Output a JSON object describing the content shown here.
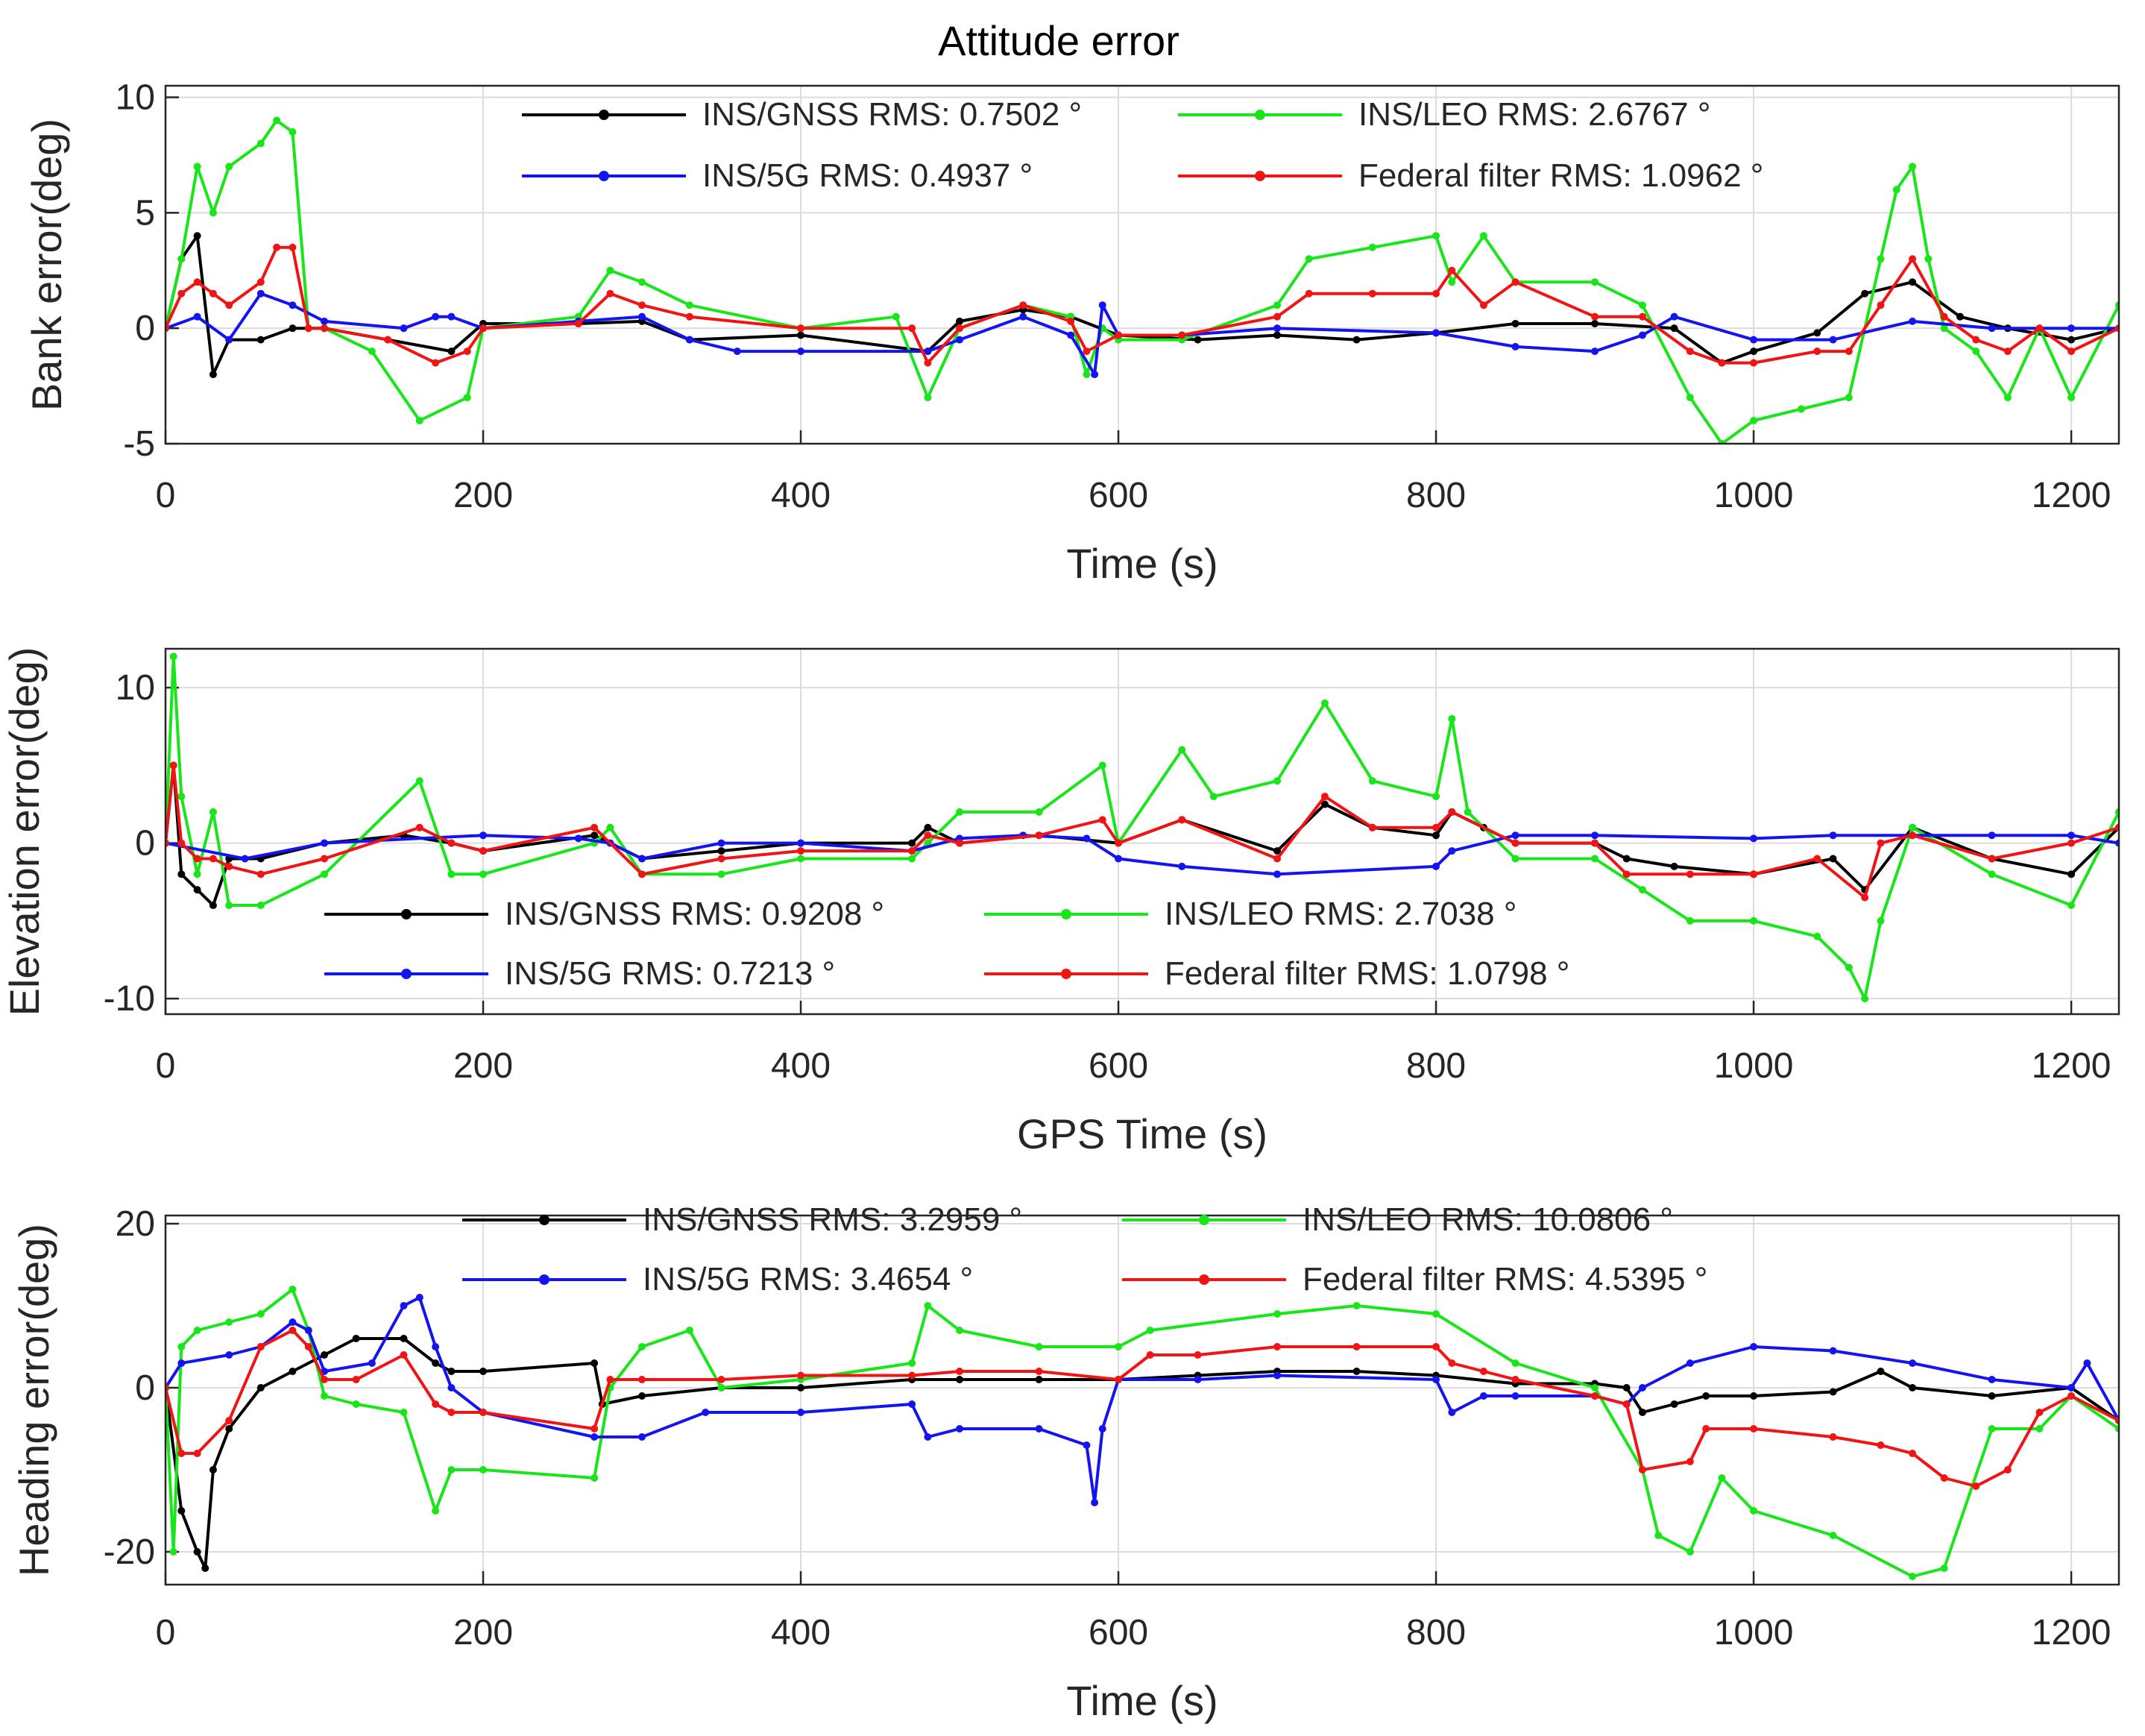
{
  "figure": {
    "title": "Attitude error",
    "colors": {
      "INS/GNSS": "#000000",
      "INS/LEO": "#18e618",
      "INS/5G": "#1414f0",
      "Federal filter": "#f01414"
    }
  },
  "chart_data": [
    {
      "type": "line",
      "title": "Attitude error",
      "xlabel": "Time (s)",
      "ylabel": "Bank error(deg)",
      "xlim": [
        0,
        1230
      ],
      "ylim": [
        -5,
        10.5
      ],
      "xticks": [
        0,
        200,
        400,
        600,
        800,
        1000,
        1200
      ],
      "yticks": [
        -5,
        0,
        5,
        10
      ],
      "legend": [
        "INS/GNSS RMS: 0.7502 °",
        "INS/LEO RMS: 2.6767 °",
        "INS/5G RMS: 0.4937 °",
        "Federal filter RMS: 1.0962 °"
      ],
      "series": [
        {
          "name": "INS/GNSS",
          "color": "#000000",
          "x": [
            0,
            10,
            20,
            30,
            40,
            60,
            80,
            100,
            140,
            180,
            200,
            260,
            300,
            330,
            400,
            480,
            500,
            540,
            570,
            600,
            650,
            700,
            750,
            800,
            850,
            900,
            950,
            980,
            1000,
            1040,
            1070,
            1100,
            1130,
            1160,
            1200,
            1230
          ],
          "y": [
            0,
            3,
            4,
            -2,
            -0.5,
            -0.5,
            0,
            0,
            -0.5,
            -1,
            0.2,
            0.2,
            0.3,
            -0.5,
            -0.3,
            -1,
            0.3,
            0.8,
            0.5,
            -0.3,
            -0.5,
            -0.3,
            -0.5,
            -0.2,
            0.2,
            0.2,
            0,
            -1.5,
            -1,
            -0.2,
            1.5,
            2,
            0.5,
            0,
            -0.5,
            0
          ]
        },
        {
          "name": "INS/LEO",
          "color": "#18e618",
          "x": [
            0,
            10,
            20,
            30,
            40,
            60,
            70,
            80,
            90,
            100,
            130,
            160,
            190,
            200,
            260,
            280,
            300,
            330,
            400,
            460,
            480,
            500,
            540,
            570,
            580,
            590,
            600,
            640,
            700,
            720,
            760,
            800,
            810,
            830,
            850,
            900,
            930,
            960,
            980,
            1000,
            1030,
            1060,
            1080,
            1090,
            1100,
            1110,
            1120,
            1140,
            1160,
            1180,
            1200,
            1230
          ],
          "y": [
            0,
            3,
            7,
            5,
            7,
            8,
            9,
            8.5,
            0,
            0,
            -1,
            -4,
            -3,
            0,
            0.5,
            2.5,
            2,
            1,
            0,
            0.5,
            -3,
            0,
            1,
            0.5,
            -2,
            0,
            -0.5,
            -0.5,
            1,
            3,
            3.5,
            4,
            2,
            4,
            2,
            2,
            1,
            -3,
            -5,
            -4,
            -3.5,
            -3,
            3,
            6,
            7,
            3,
            0,
            -1,
            -3,
            0,
            -3,
            1
          ]
        },
        {
          "name": "INS/5G",
          "color": "#1414f0",
          "x": [
            0,
            20,
            40,
            60,
            80,
            100,
            150,
            170,
            180,
            200,
            260,
            300,
            330,
            360,
            400,
            480,
            500,
            540,
            570,
            585,
            590,
            600,
            640,
            700,
            800,
            850,
            900,
            930,
            950,
            1000,
            1050,
            1100,
            1150,
            1200,
            1230
          ],
          "y": [
            0,
            0.5,
            -0.5,
            1.5,
            1,
            0.3,
            0,
            0.5,
            0.5,
            0,
            0.3,
            0.5,
            -0.5,
            -1,
            -1,
            -1,
            -0.5,
            0.5,
            -0.3,
            -2,
            1,
            -0.3,
            -0.3,
            0,
            -0.2,
            -0.8,
            -1,
            -0.3,
            0.5,
            -0.5,
            -0.5,
            0.3,
            0,
            0,
            0
          ]
        },
        {
          "name": "Federal filter",
          "color": "#f01414",
          "x": [
            0,
            10,
            20,
            30,
            40,
            60,
            70,
            80,
            90,
            100,
            140,
            170,
            190,
            200,
            260,
            280,
            300,
            330,
            400,
            470,
            480,
            500,
            540,
            570,
            580,
            600,
            640,
            700,
            720,
            760,
            800,
            810,
            830,
            850,
            900,
            930,
            960,
            980,
            1000,
            1040,
            1060,
            1080,
            1100,
            1120,
            1140,
            1160,
            1180,
            1200,
            1230
          ],
          "y": [
            0,
            1.5,
            2,
            1.5,
            1,
            2,
            3.5,
            3.5,
            0,
            0,
            -0.5,
            -1.5,
            -1,
            0,
            0.2,
            1.5,
            1,
            0.5,
            0,
            0,
            -1.5,
            0,
            1,
            0.3,
            -1,
            -0.3,
            -0.3,
            0.5,
            1.5,
            1.5,
            1.5,
            2.5,
            1,
            2,
            0.5,
            0.5,
            -1,
            -1.5,
            -1.5,
            -1,
            -1,
            1,
            3,
            0.5,
            -0.5,
            -1,
            0,
            -1,
            0
          ]
        }
      ]
    },
    {
      "type": "line",
      "xlabel": "GPS Time (s)",
      "ylabel": "Elevation error(deg)",
      "xlim": [
        0,
        1230
      ],
      "ylim": [
        -11,
        12.5
      ],
      "xticks": [
        0,
        200,
        400,
        600,
        800,
        1000,
        1200
      ],
      "yticks": [
        -10,
        0,
        10
      ],
      "legend": [
        "INS/GNSS RMS: 0.9208 °",
        "INS/LEO RMS: 2.7038 °",
        "INS/5G RMS: 0.7213 °",
        "Federal filter RMS: 1.0798 °"
      ],
      "series": [
        {
          "name": "INS/GNSS",
          "color": "#000000",
          "x": [
            0,
            5,
            10,
            20,
            30,
            40,
            60,
            100,
            150,
            180,
            200,
            270,
            300,
            350,
            400,
            470,
            480,
            500,
            550,
            600,
            640,
            700,
            730,
            760,
            800,
            810,
            830,
            850,
            900,
            920,
            950,
            1000,
            1050,
            1070,
            1100,
            1150,
            1200,
            1230
          ],
          "y": [
            0,
            5,
            -2,
            -3,
            -4,
            -1,
            -1,
            0,
            0.5,
            0,
            -0.5,
            0.5,
            -1,
            -0.5,
            0,
            0,
            1,
            0,
            0.5,
            0,
            1.5,
            -0.5,
            2.5,
            1,
            0.5,
            2,
            1,
            0,
            0,
            -1,
            -1.5,
            -2,
            -1,
            -3,
            1,
            -1,
            -2,
            1
          ]
        },
        {
          "name": "INS/LEO",
          "color": "#18e618",
          "x": [
            0,
            5,
            10,
            20,
            30,
            40,
            60,
            100,
            160,
            180,
            200,
            270,
            280,
            300,
            350,
            400,
            470,
            480,
            500,
            550,
            590,
            600,
            640,
            660,
            700,
            730,
            760,
            800,
            810,
            820,
            850,
            900,
            930,
            960,
            1000,
            1040,
            1060,
            1070,
            1080,
            1100,
            1150,
            1200,
            1230
          ],
          "y": [
            0,
            12,
            3,
            -2,
            2,
            -4,
            -4,
            -2,
            4,
            -2,
            -2,
            0,
            1,
            -2,
            -2,
            -1,
            -1,
            0,
            2,
            2,
            5,
            0,
            6,
            3,
            4,
            9,
            4,
            3,
            8,
            2,
            -1,
            -1,
            -3,
            -5,
            -5,
            -6,
            -8,
            -10,
            -5,
            1,
            -2,
            -4,
            2
          ]
        },
        {
          "name": "INS/5G",
          "color": "#1414f0",
          "x": [
            0,
            50,
            100,
            200,
            260,
            280,
            300,
            350,
            400,
            470,
            500,
            540,
            580,
            600,
            640,
            700,
            800,
            810,
            850,
            900,
            1000,
            1050,
            1100,
            1150,
            1200,
            1230
          ],
          "y": [
            0,
            -1,
            0,
            0.5,
            0.3,
            0,
            -1,
            0,
            0,
            -0.5,
            0.3,
            0.5,
            0.3,
            -1,
            -1.5,
            -2,
            -1.5,
            -0.5,
            0.5,
            0.5,
            0.3,
            0.5,
            0.5,
            0.5,
            0.5,
            0
          ]
        },
        {
          "name": "Federal filter",
          "color": "#f01414",
          "x": [
            0,
            5,
            10,
            20,
            30,
            40,
            60,
            100,
            160,
            180,
            200,
            270,
            300,
            350,
            400,
            470,
            480,
            500,
            550,
            590,
            600,
            640,
            700,
            730,
            760,
            800,
            810,
            850,
            900,
            920,
            960,
            1000,
            1040,
            1070,
            1080,
            1100,
            1150,
            1200,
            1230
          ],
          "y": [
            0,
            5,
            0,
            -1,
            -1,
            -1.5,
            -2,
            -1,
            1,
            0,
            -0.5,
            1,
            -2,
            -1,
            -0.5,
            -0.5,
            0.5,
            0,
            0.5,
            1.5,
            0,
            1.5,
            -1,
            3,
            1,
            1,
            2,
            0,
            0,
            -2,
            -2,
            -2,
            -1,
            -3.5,
            0,
            0.5,
            -1,
            0,
            1
          ]
        }
      ]
    },
    {
      "type": "line",
      "xlabel": "Time (s)",
      "ylabel": "Heading error(deg)",
      "xlim": [
        0,
        1230
      ],
      "ylim": [
        -24,
        21
      ],
      "xticks": [
        0,
        200,
        400,
        600,
        800,
        1000,
        1200
      ],
      "yticks": [
        -20,
        0,
        20
      ],
      "legend": [
        "INS/GNSS RMS: 3.2959 °",
        "INS/LEO RMS: 10.0806 °",
        "INS/5G RMS: 3.4654 °",
        "Federal filter RMS: 4.5395 °"
      ],
      "series": [
        {
          "name": "INS/GNSS",
          "color": "#000000",
          "x": [
            0,
            10,
            20,
            25,
            30,
            40,
            60,
            80,
            100,
            120,
            150,
            170,
            180,
            200,
            270,
            275,
            300,
            350,
            400,
            470,
            500,
            550,
            600,
            650,
            700,
            750,
            800,
            850,
            900,
            920,
            930,
            950,
            970,
            1000,
            1050,
            1080,
            1100,
            1150,
            1200,
            1230
          ],
          "y": [
            0,
            -15,
            -20,
            -22,
            -10,
            -5,
            0,
            2,
            4,
            6,
            6,
            3,
            2,
            2,
            3,
            -2,
            -1,
            0,
            0,
            1,
            1,
            1,
            1,
            1.5,
            2,
            2,
            1.5,
            0.5,
            0.5,
            0,
            -3,
            -2,
            -1,
            -1,
            -0.5,
            2,
            0,
            -1,
            0,
            -4
          ]
        },
        {
          "name": "INS/LEO",
          "color": "#18e618",
          "x": [
            0,
            5,
            10,
            20,
            40,
            60,
            80,
            90,
            100,
            120,
            150,
            170,
            180,
            200,
            270,
            280,
            300,
            330,
            350,
            400,
            470,
            480,
            500,
            550,
            600,
            620,
            700,
            750,
            800,
            850,
            900,
            930,
            940,
            960,
            980,
            1000,
            1050,
            1100,
            1120,
            1150,
            1180,
            1200,
            1230
          ],
          "y": [
            0,
            -20,
            5,
            7,
            8,
            9,
            12,
            7,
            -1,
            -2,
            -3,
            -15,
            -10,
            -10,
            -11,
            0,
            5,
            7,
            0,
            1,
            3,
            10,
            7,
            5,
            5,
            7,
            9,
            10,
            9,
            3,
            0,
            -10,
            -18,
            -20,
            -11,
            -15,
            -18,
            -23,
            -22,
            -5,
            -5,
            -1,
            -5
          ]
        },
        {
          "name": "INS/5G",
          "color": "#1414f0",
          "x": [
            0,
            10,
            40,
            60,
            80,
            90,
            100,
            130,
            150,
            160,
            170,
            180,
            200,
            270,
            300,
            340,
            400,
            470,
            480,
            500,
            550,
            580,
            585,
            590,
            600,
            650,
            700,
            800,
            810,
            830,
            850,
            900,
            920,
            930,
            960,
            1000,
            1050,
            1100,
            1150,
            1200,
            1210,
            1230
          ],
          "y": [
            0,
            3,
            4,
            5,
            8,
            7,
            2,
            3,
            10,
            11,
            5,
            0,
            -3,
            -6,
            -6,
            -3,
            -3,
            -2,
            -6,
            -5,
            -5,
            -7,
            -14,
            -5,
            1,
            1,
            1.5,
            1,
            -3,
            -1,
            -1,
            -1,
            -2,
            0,
            3,
            5,
            4.5,
            3,
            1,
            0,
            3,
            -4
          ]
        },
        {
          "name": "Federal filter",
          "color": "#f01414",
          "x": [
            0,
            10,
            20,
            40,
            60,
            80,
            90,
            100,
            120,
            150,
            170,
            180,
            200,
            270,
            280,
            300,
            350,
            400,
            470,
            500,
            550,
            600,
            620,
            650,
            700,
            750,
            800,
            810,
            830,
            850,
            900,
            920,
            930,
            960,
            970,
            1000,
            1050,
            1080,
            1100,
            1120,
            1140,
            1160,
            1180,
            1200,
            1230
          ],
          "y": [
            0,
            -8,
            -8,
            -4,
            5,
            7,
            5,
            1,
            1,
            4,
            -2,
            -3,
            -3,
            -5,
            1,
            1,
            1,
            1.5,
            1.5,
            2,
            2,
            1,
            4,
            4,
            5,
            5,
            5,
            3,
            2,
            1,
            -1,
            -2,
            -10,
            -9,
            -5,
            -5,
            -6,
            -7,
            -8,
            -11,
            -12,
            -10,
            -3,
            -1,
            -4
          ]
        }
      ]
    }
  ]
}
